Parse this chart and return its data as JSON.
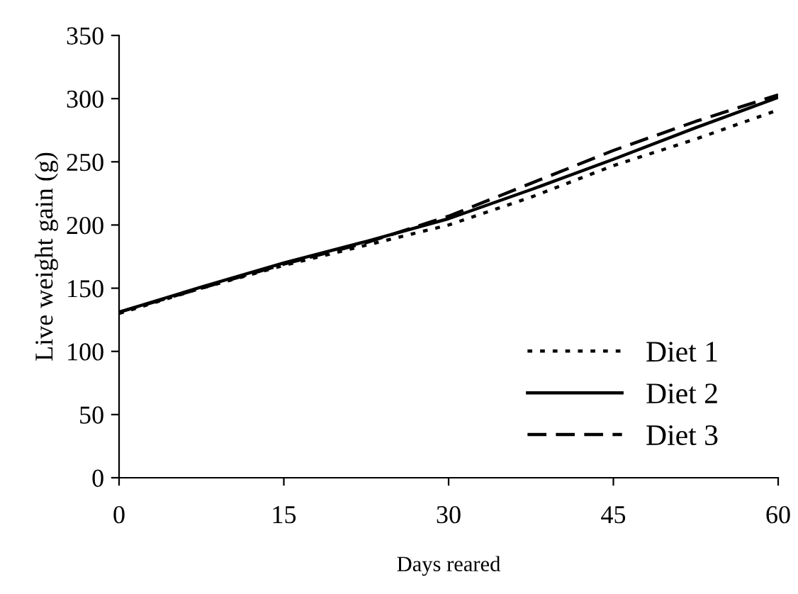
{
  "chart_data": {
    "type": "line",
    "xlabel": "Days reared",
    "ylabel": "Live weight gain (g)",
    "x": [
      0,
      7.5,
      15,
      22.5,
      30,
      37.5,
      45,
      52.5,
      60
    ],
    "series": [
      {
        "name": "Diet 1",
        "color": "#000000",
        "line_style": "dotted",
        "values": [
          130,
          150,
          168,
          184,
          200,
          222,
          247,
          268,
          291
        ]
      },
      {
        "name": "Diet 2",
        "color": "#000000",
        "line_style": "solid",
        "values": [
          131,
          151,
          170,
          187,
          205,
          228,
          252,
          277,
          301
        ]
      },
      {
        "name": "Diet 3",
        "color": "#000000",
        "line_style": "dashed",
        "values": [
          131,
          150,
          169,
          186,
          207,
          233,
          259,
          282,
          303
        ]
      }
    ],
    "xlim": [
      0,
      60
    ],
    "xticks": [
      0,
      15,
      30,
      45,
      60
    ],
    "ylim": [
      0,
      350
    ],
    "yticks": [
      0,
      50,
      100,
      150,
      200,
      250,
      300,
      350
    ],
    "grid": false,
    "legend": "bottom right",
    "marker": "none"
  }
}
